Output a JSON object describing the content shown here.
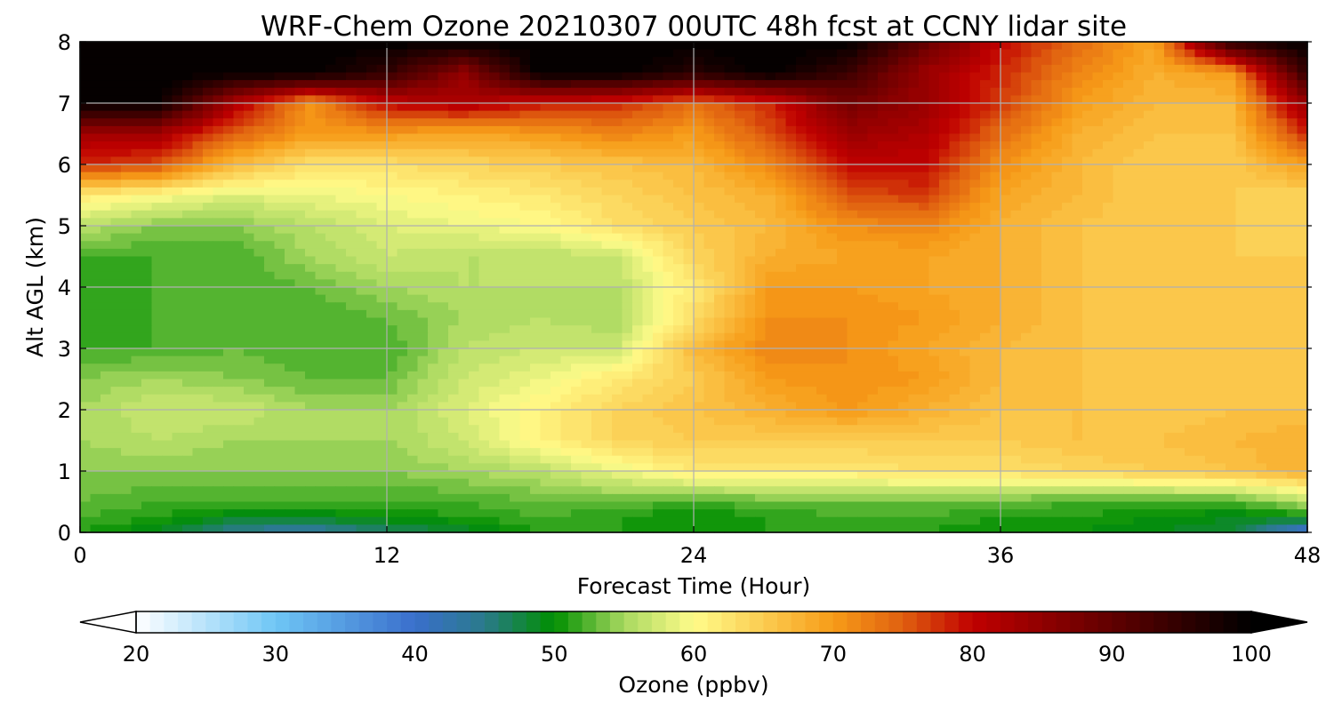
{
  "chart_data": {
    "type": "heatmap",
    "title": "WRF-Chem Ozone  20210307 00UTC 48h fcst at CCNY lidar site",
    "xlabel": "Forecast Time (Hour)",
    "ylabel": "Alt AGL (km)",
    "xlim": [
      0,
      48
    ],
    "ylim": [
      0,
      8
    ],
    "x_ticks": [
      0,
      12,
      24,
      36,
      48
    ],
    "y_ticks": [
      0,
      1,
      2,
      3,
      4,
      5,
      6,
      7,
      8
    ],
    "grid": true,
    "x": [
      0,
      3,
      6,
      9,
      12,
      15,
      18,
      21,
      24,
      27,
      30,
      33,
      36,
      39,
      42,
      45,
      48
    ],
    "y": [
      0,
      0.25,
      0.5,
      1,
      1.5,
      2,
      2.5,
      3,
      3.5,
      4,
      4.5,
      5,
      5.5,
      6,
      6.5,
      7,
      7.5,
      8
    ],
    "z": [
      [
        51,
        49,
        44,
        43,
        46,
        48,
        51,
        51,
        50,
        51,
        52,
        51,
        50,
        50,
        49,
        48,
        38
      ],
      [
        52,
        51,
        49,
        49,
        50,
        51,
        52,
        51,
        50,
        51,
        52,
        52,
        51,
        51,
        50,
        49,
        50
      ],
      [
        53,
        52,
        52,
        52,
        52,
        52,
        53,
        53,
        52,
        53,
        53,
        53,
        53,
        52,
        52,
        52,
        56
      ],
      [
        54,
        54,
        54,
        54,
        54,
        55,
        56,
        59,
        62,
        62,
        62,
        63,
        63,
        64,
        65,
        66,
        68
      ],
      [
        55,
        56,
        55,
        55,
        55,
        57,
        61,
        64,
        65,
        65,
        65,
        65,
        65,
        66,
        66,
        67,
        68
      ],
      [
        55,
        57,
        57,
        55,
        55,
        58,
        61,
        64,
        66,
        68,
        70,
        68,
        66,
        66,
        65,
        66,
        66
      ],
      [
        54,
        55,
        54,
        53,
        53,
        57,
        59,
        62,
        65,
        70,
        71,
        70,
        67,
        66,
        65,
        65,
        65
      ],
      [
        52,
        52,
        53,
        52,
        52,
        56,
        57,
        57,
        67,
        72,
        71,
        69,
        67,
        66,
        65,
        65,
        65
      ],
      [
        51,
        52,
        52,
        52,
        53,
        55,
        56,
        55,
        63,
        71,
        71,
        70,
        68,
        66,
        65,
        65,
        65
      ],
      [
        51,
        52,
        52,
        53,
        55,
        56,
        56,
        56,
        62,
        70,
        70,
        69,
        68,
        66,
        65,
        65,
        65
      ],
      [
        52,
        52,
        52,
        55,
        57,
        56,
        56,
        57,
        64,
        68,
        69,
        69,
        68,
        66,
        65,
        65,
        65
      ],
      [
        56,
        54,
        54,
        56,
        58,
        59,
        60,
        63,
        65,
        67,
        71,
        72,
        68,
        66,
        65,
        65,
        64
      ],
      [
        62,
        60,
        58,
        59,
        60,
        61,
        62,
        64,
        66,
        68,
        76,
        77,
        69,
        67,
        65,
        65,
        64
      ],
      [
        78,
        76,
        67,
        63,
        63,
        64,
        65,
        66,
        67,
        72,
        80,
        80,
        71,
        67,
        65,
        65,
        70
      ],
      [
        83,
        83,
        75,
        70,
        70,
        69,
        70,
        72,
        70,
        76,
        84,
        82,
        74,
        68,
        66,
        66,
        78
      ],
      [
        100,
        100,
        82,
        71,
        80,
        82,
        79,
        78,
        74,
        78,
        88,
        84,
        77,
        70,
        67,
        67,
        85
      ],
      [
        100,
        100,
        100,
        100,
        95,
        85,
        100,
        100,
        96,
        100,
        94,
        84,
        78,
        72,
        68,
        70,
        95
      ],
      [
        100,
        100,
        100,
        100,
        100,
        100,
        100,
        100,
        100,
        100,
        100,
        90,
        80,
        74,
        69,
        96,
        100
      ]
    ],
    "colorbar": {
      "label": "Ozone  (ppbv)",
      "min": 20,
      "max": 100,
      "ticks": [
        20,
        30,
        40,
        50,
        60,
        70,
        80,
        90,
        100
      ],
      "extend": "both",
      "colors": {
        "20": "#ffffff",
        "30": "#6fc6f5",
        "40": "#3a6fcc",
        "45": "#2a7a8a",
        "50": "#008f00",
        "55": "#a8d860",
        "60": "#fffc8a",
        "70": "#f79c18",
        "75": "#e06010",
        "80": "#c00000",
        "90": "#600000",
        "100": "#000000"
      }
    }
  }
}
